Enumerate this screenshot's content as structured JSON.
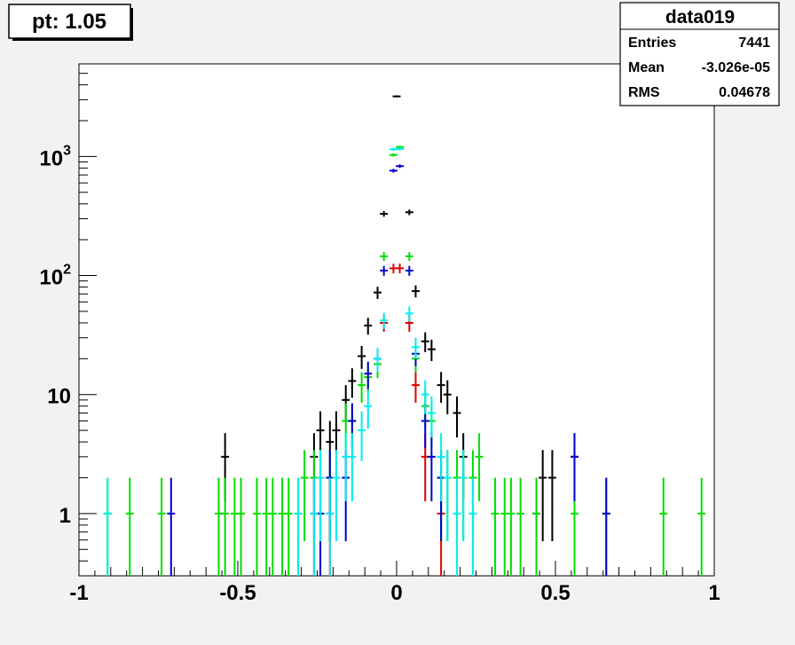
{
  "title_box": {
    "label": "pt: 1.05"
  },
  "stats_box": {
    "name": "data019",
    "rows": [
      {
        "label": "Entries",
        "value": "7441"
      },
      {
        "label": "Mean",
        "value": "-3.026e-05"
      },
      {
        "label": "RMS",
        "value": "0.04678"
      }
    ]
  },
  "chart_data": {
    "type": "scatter",
    "title": "pt: 1.05",
    "xlabel": "",
    "ylabel": "",
    "xlim": [
      -1,
      1
    ],
    "ylim": [
      0.3,
      6000
    ],
    "yscale": "log",
    "bin_width": 0.025,
    "x_ticks": [
      "-1",
      "-0.5",
      "0",
      "0.5",
      "1"
    ],
    "y_ticks": [
      {
        "value": 1,
        "label": "1"
      },
      {
        "value": 10,
        "label": "10"
      },
      {
        "value": 100,
        "label": "10^2"
      },
      {
        "value": 1000,
        "label": "10^3"
      }
    ],
    "grid": false,
    "colors": {
      "black": "#000000",
      "red": "#dd0000",
      "green": "#00dd00",
      "blue": "#0000cc",
      "cyan": "#00eeee"
    },
    "series": [
      {
        "color": "#000000",
        "points": [
          [
            -0.54,
            3
          ],
          [
            -0.26,
            3
          ],
          [
            -0.24,
            5
          ],
          [
            -0.21,
            4
          ],
          [
            -0.19,
            5
          ],
          [
            -0.16,
            9
          ],
          [
            -0.14,
            13
          ],
          [
            -0.11,
            21
          ],
          [
            -0.09,
            38
          ],
          [
            -0.06,
            72
          ],
          [
            -0.04,
            330
          ],
          [
            0,
            3200
          ],
          [
            0.04,
            340
          ],
          [
            0.06,
            74
          ],
          [
            0.09,
            28
          ],
          [
            0.11,
            24
          ],
          [
            0.14,
            12
          ],
          [
            0.16,
            10
          ],
          [
            0.19,
            7
          ],
          [
            0.21,
            3
          ],
          [
            0.44,
            1
          ],
          [
            0.46,
            2
          ],
          [
            0.49,
            2
          ],
          [
            0.56,
            3
          ]
        ]
      },
      {
        "color": "#dd0000",
        "points": [
          [
            -0.21,
            1
          ],
          [
            -0.04,
            40
          ],
          [
            -0.01,
            115
          ],
          [
            0.01,
            115
          ],
          [
            0.04,
            40
          ],
          [
            0.06,
            12
          ],
          [
            0.09,
            3
          ],
          [
            0.14,
            1
          ]
        ]
      },
      {
        "color": "#00dd00",
        "points": [
          [
            -0.91,
            1
          ],
          [
            -0.84,
            1
          ],
          [
            -0.74,
            1
          ],
          [
            -0.56,
            1
          ],
          [
            -0.54,
            1
          ],
          [
            -0.51,
            1
          ],
          [
            -0.49,
            1
          ],
          [
            -0.44,
            1
          ],
          [
            -0.41,
            1
          ],
          [
            -0.39,
            1
          ],
          [
            -0.36,
            1
          ],
          [
            -0.34,
            1
          ],
          [
            -0.31,
            1
          ],
          [
            -0.29,
            2
          ],
          [
            -0.26,
            2
          ],
          [
            -0.24,
            2
          ],
          [
            -0.21,
            2
          ],
          [
            -0.19,
            2
          ],
          [
            -0.16,
            6
          ],
          [
            -0.14,
            6
          ],
          [
            -0.11,
            12
          ],
          [
            -0.09,
            14
          ],
          [
            -0.06,
            18
          ],
          [
            -0.04,
            145
          ],
          [
            -0.01,
            1030
          ],
          [
            0.01,
            1200
          ],
          [
            0.04,
            145
          ],
          [
            0.06,
            20
          ],
          [
            0.09,
            8
          ],
          [
            0.11,
            6
          ],
          [
            0.14,
            2
          ],
          [
            0.16,
            2
          ],
          [
            0.19,
            2
          ],
          [
            0.21,
            2
          ],
          [
            0.24,
            2
          ],
          [
            0.26,
            3
          ],
          [
            0.31,
            1
          ],
          [
            0.34,
            1
          ],
          [
            0.36,
            1
          ],
          [
            0.39,
            1
          ],
          [
            0.44,
            1
          ],
          [
            0.56,
            1
          ],
          [
            0.66,
            1
          ],
          [
            0.84,
            1
          ],
          [
            0.96,
            1
          ]
        ]
      },
      {
        "color": "#0000cc",
        "points": [
          [
            -0.71,
            1
          ],
          [
            -0.26,
            1
          ],
          [
            -0.24,
            1
          ],
          [
            -0.21,
            2
          ],
          [
            -0.16,
            2
          ],
          [
            -0.14,
            6
          ],
          [
            -0.09,
            15
          ],
          [
            -0.06,
            20
          ],
          [
            -0.04,
            110
          ],
          [
            -0.01,
            760
          ],
          [
            0.01,
            830
          ],
          [
            0.04,
            110
          ],
          [
            0.06,
            22
          ],
          [
            0.09,
            6
          ],
          [
            0.11,
            3
          ],
          [
            0.14,
            2
          ],
          [
            0.56,
            3
          ],
          [
            0.66,
            1
          ]
        ]
      },
      {
        "color": "#00eeee",
        "points": [
          [
            -0.91,
            1
          ],
          [
            -0.31,
            1
          ],
          [
            -0.26,
            1
          ],
          [
            -0.24,
            2
          ],
          [
            -0.21,
            1
          ],
          [
            -0.19,
            2
          ],
          [
            -0.16,
            3
          ],
          [
            -0.14,
            3
          ],
          [
            -0.11,
            5
          ],
          [
            -0.09,
            8
          ],
          [
            -0.06,
            20
          ],
          [
            -0.04,
            42
          ],
          [
            -0.01,
            1150
          ],
          [
            0.01,
            1160
          ],
          [
            0.04,
            48
          ],
          [
            0.06,
            25
          ],
          [
            0.09,
            10
          ],
          [
            0.11,
            7
          ],
          [
            0.14,
            3
          ],
          [
            0.16,
            2
          ],
          [
            0.19,
            1
          ],
          [
            0.21,
            2
          ],
          [
            0.24,
            1
          ]
        ]
      }
    ]
  }
}
